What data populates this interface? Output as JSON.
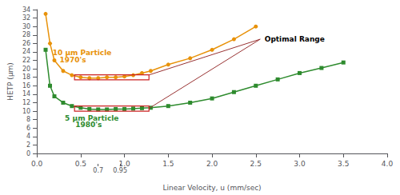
{
  "chart_data": {
    "type": "line",
    "xlabel": "Linear Velocity, u (mm/sec)",
    "ylabel": "HETP (µm)",
    "series": [
      {
        "x": [
          0.1,
          0.15,
          0.2,
          0.3,
          0.4,
          0.5,
          0.6,
          0.7,
          0.8,
          0.9,
          1.0,
          1.1,
          1.2,
          1.3,
          1.5,
          1.75,
          2.0,
          2.25,
          2.5
        ],
        "values": [
          33,
          26,
          22,
          19.5,
          18.5,
          18.0,
          17.8,
          17.8,
          18.0,
          18.0,
          18.2,
          18.5,
          19.0,
          19.5,
          21.0,
          22.5,
          24.5,
          27.0,
          30.0
        ],
        "color": "#E8920A",
        "marker": "circle"
      },
      {
        "x": [
          0.1,
          0.15,
          0.2,
          0.3,
          0.4,
          0.5,
          0.6,
          0.7,
          0.8,
          0.9,
          1.0,
          1.1,
          1.2,
          1.3,
          1.5,
          1.75,
          2.0,
          2.25,
          2.5,
          2.75,
          3.0,
          3.25,
          3.5
        ],
        "values": [
          24.5,
          16.0,
          13.5,
          12.0,
          11.2,
          10.8,
          10.5,
          10.4,
          10.4,
          10.5,
          10.5,
          10.6,
          10.7,
          10.8,
          11.2,
          12.0,
          13.0,
          14.5,
          16.0,
          17.5,
          19.0,
          20.2,
          21.5
        ],
        "color": "#2E8B2E",
        "marker": "square"
      }
    ],
    "xlim": [
      0,
      4
    ],
    "xticks": [
      {
        "value": 0,
        "label": "0.0"
      },
      {
        "value": 0.5,
        "label": "0.5"
      },
      {
        "value": 1.0,
        "label": "1.0"
      },
      {
        "value": 1.5,
        "label": "1.5"
      },
      {
        "value": 2.0,
        "label": "2.0"
      },
      {
        "value": 2.5,
        "label": "2.5"
      },
      {
        "value": 3.0,
        "label": "3.0"
      },
      {
        "value": 3.5,
        "label": "3.5"
      },
      {
        "value": 4.0,
        "label": "4.0"
      }
    ],
    "extra_xticks": [
      0.7,
      0.95
    ],
    "ylim": [
      0,
      34
    ],
    "yticks": [
      0,
      2,
      4,
      6,
      8,
      10,
      12,
      14,
      16,
      18,
      20,
      22,
      24,
      26,
      28,
      30,
      32,
      34
    ],
    "grid": false,
    "rectangles": [
      {
        "x": 0.43,
        "y": 17.4,
        "width": 0.85,
        "height": 1.2,
        "color": "#CC2222"
      },
      {
        "x": 0.43,
        "y": 10.0,
        "width": 0.85,
        "height": 1.2,
        "color": "#CC2222"
      }
    ],
    "connectors": [
      {
        "x": [
          2.55,
          1.28
        ],
        "y": [
          27.0,
          18.55
        ],
        "color": "#993333"
      },
      {
        "x": [
          2.55,
          1.28
        ],
        "y": [
          27.0,
          10.65
        ],
        "color": "#993333"
      }
    ],
    "annotations": [
      {
        "text": "Optimal Range",
        "x": 2.6,
        "y": 27.0,
        "color": "#000000"
      },
      {
        "text": "10 µm Particle",
        "x": 0.18,
        "y": 23.8,
        "color": "#E8920A"
      },
      {
        "text": "1970's",
        "x": 0.26,
        "y": 22.1,
        "color": "#E8920A"
      },
      {
        "text": "5 µm Particle",
        "x": 0.32,
        "y": 8.3,
        "color": "#2E8B2E"
      },
      {
        "text": "1980's",
        "x": 0.44,
        "y": 6.8,
        "color": "#2E8B2E"
      }
    ]
  }
}
